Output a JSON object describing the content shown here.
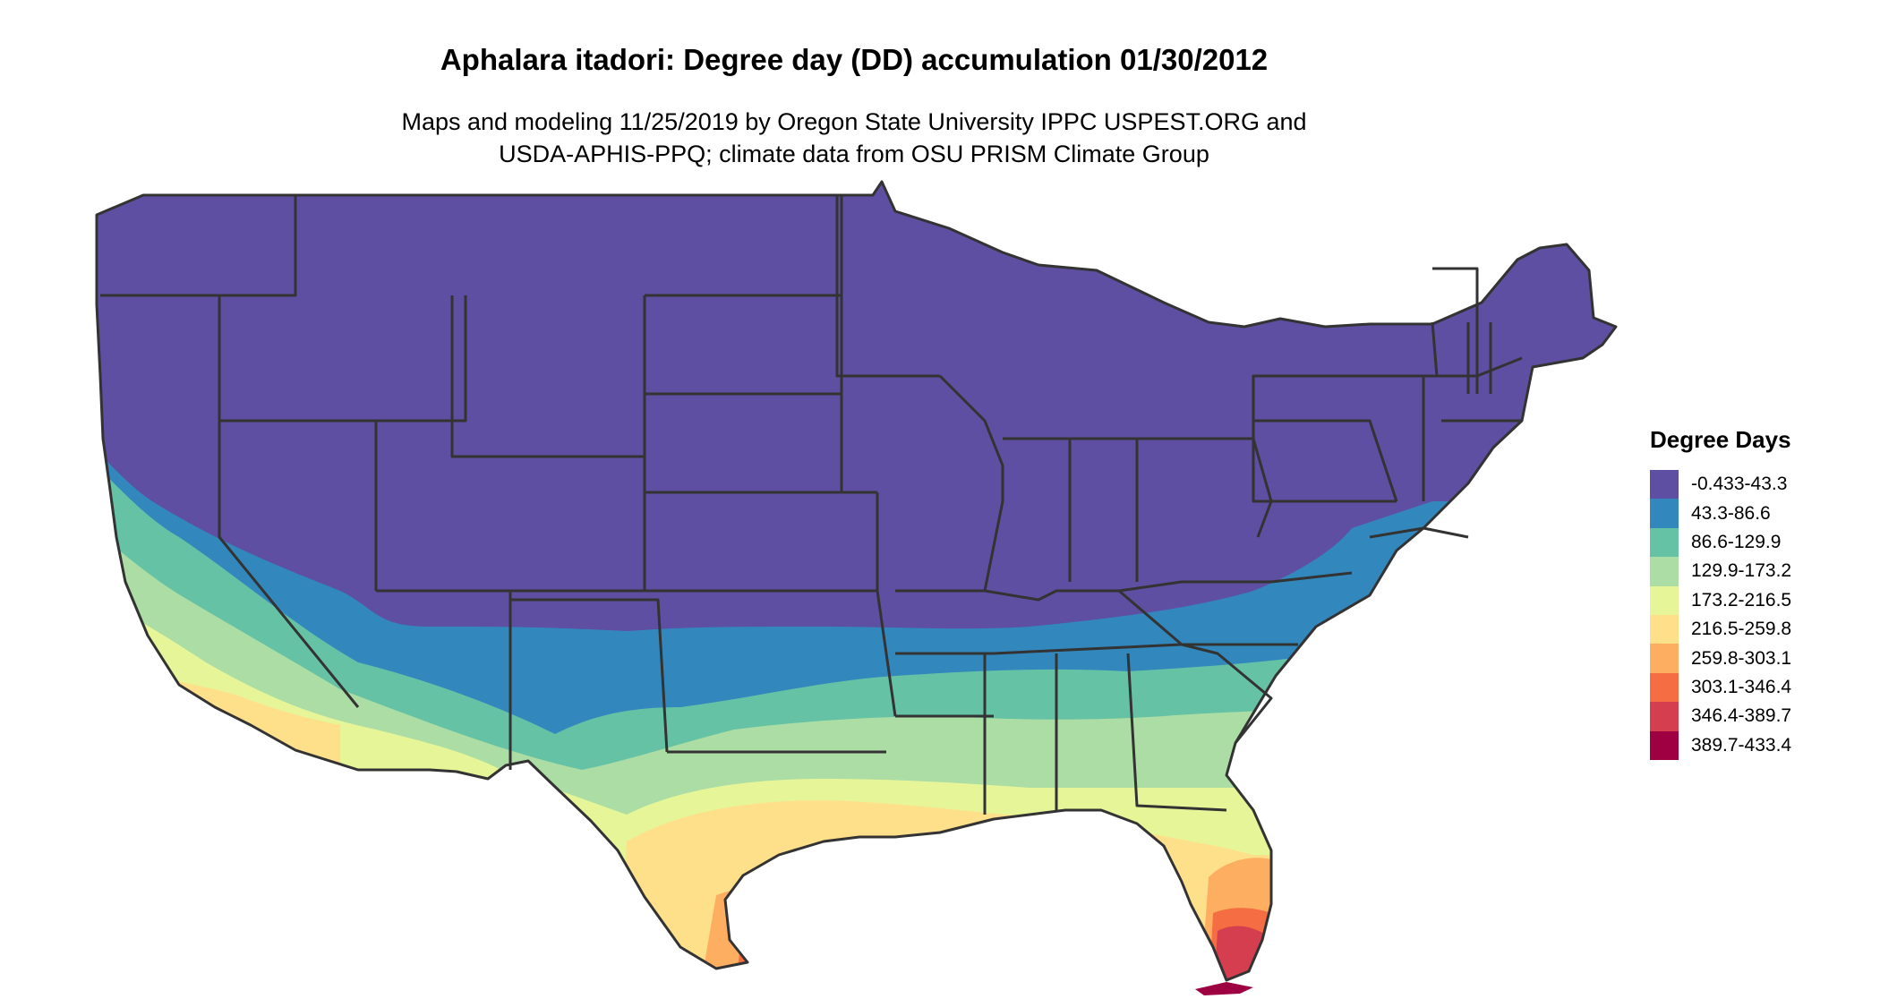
{
  "title": "Aphalara itadori: Degree day (DD) accumulation 01/30/2012",
  "subtitle_line1": "Maps and modeling 11/25/2019 by Oregon State University IPPC USPEST.ORG and",
  "subtitle_line2": "USDA-APHIS-PPQ; climate data from OSU PRISM Climate Group",
  "legend": {
    "title": "Degree Days",
    "items": [
      {
        "label": "-0.433-43.3",
        "color": "#5E4FA2"
      },
      {
        "label": "43.3-86.6",
        "color": "#3288BD"
      },
      {
        "label": "86.6-129.9",
        "color": "#66C2A5"
      },
      {
        "label": "129.9-173.2",
        "color": "#ABDDA4"
      },
      {
        "label": "173.2-216.5",
        "color": "#E6F598"
      },
      {
        "label": "216.5-259.8",
        "color": "#FEE08B"
      },
      {
        "label": "259.8-303.1",
        "color": "#FDAE61"
      },
      {
        "label": "303.1-346.4",
        "color": "#F46D43"
      },
      {
        "label": "346.4-389.7",
        "color": "#D53E4F"
      },
      {
        "label": "389.7-433.4",
        "color": "#9E0142"
      }
    ]
  },
  "map": {
    "region": "contiguous-united-states",
    "state_border_color": "#333333",
    "zones_north_to_south": [
      "-0.433-43.3",
      "43.3-86.6",
      "86.6-129.9",
      "129.9-173.2",
      "173.2-216.5",
      "216.5-259.8",
      "259.8-303.1",
      "303.1-346.4",
      "346.4-389.7",
      "389.7-433.4"
    ]
  }
}
